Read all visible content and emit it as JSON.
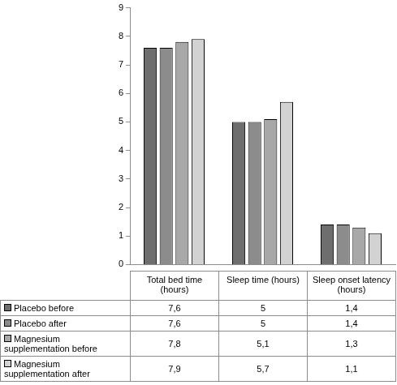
{
  "chart_data": {
    "type": "bar",
    "categories": [
      "Total bed time (hours)",
      "Sleep time (hours)",
      "Sleep onset latency (hours)"
    ],
    "series": [
      {
        "name": "Placebo before",
        "color": "#6e6e6e",
        "values": [
          7.6,
          5,
          1.4
        ],
        "value_labels": [
          "7,6",
          "5",
          "1,4"
        ]
      },
      {
        "name": "Placebo after",
        "color": "#8c8c8c",
        "values": [
          7.6,
          5,
          1.4
        ],
        "value_labels": [
          "7,6",
          "5",
          "1,4"
        ]
      },
      {
        "name": "Magnesium supplementation before",
        "color": "#a8a8a8",
        "values": [
          7.8,
          5.1,
          1.3
        ],
        "value_labels": [
          "7,8",
          "5,1",
          "1,3"
        ]
      },
      {
        "name": "Magnesium supplementation after",
        "color": "#d2d2d2",
        "values": [
          7.9,
          5.7,
          1.1
        ],
        "value_labels": [
          "7,9",
          "5,7",
          "1,1"
        ]
      }
    ],
    "ylim": [
      0,
      9
    ],
    "yticks": [
      0,
      1,
      2,
      3,
      4,
      5,
      6,
      7,
      8,
      9
    ],
    "grid": false
  }
}
